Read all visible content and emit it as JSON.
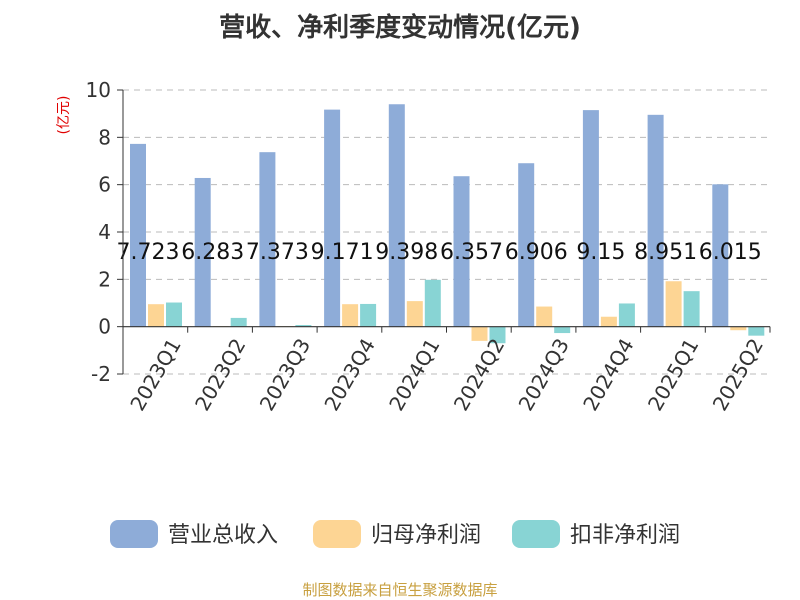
{
  "chart_data": {
    "type": "bar",
    "title": "营收、净利季度变动情况(亿元)",
    "ylabel": "(亿元)",
    "ylim": [
      -2,
      10
    ],
    "yticks": [
      -2,
      0,
      2,
      4,
      6,
      8,
      10
    ],
    "grid": true,
    "legend_position": "bottom",
    "categories": [
      "2023Q1",
      "2023Q2",
      "2023Q3",
      "2023Q4",
      "2024Q1",
      "2024Q2",
      "2024Q3",
      "2024Q4",
      "2025Q1",
      "2025Q2"
    ],
    "series": [
      {
        "name": "营业总收入",
        "color": "#8eacd8",
        "values": [
          7.723,
          6.283,
          7.373,
          9.171,
          9.398,
          6.357,
          6.906,
          9.15,
          8.951,
          6.015
        ],
        "data_labels": [
          "7.723",
          "6.283",
          "7.373",
          "9.171",
          "9.398",
          "6.357",
          "6.906",
          "9.15",
          "8.951",
          "6.015"
        ]
      },
      {
        "name": "归母净利润",
        "color": "#fdd594",
        "values": [
          0.95,
          0.02,
          0.02,
          0.95,
          1.08,
          -0.6,
          0.85,
          0.42,
          1.92,
          -0.15
        ]
      },
      {
        "name": "扣非净利润",
        "color": "#88d4d4",
        "values": [
          1.02,
          0.37,
          0.07,
          0.96,
          1.98,
          -0.7,
          -0.27,
          0.98,
          1.5,
          -0.38
        ]
      }
    ]
  },
  "source": "制图数据来自恒生聚源数据库"
}
